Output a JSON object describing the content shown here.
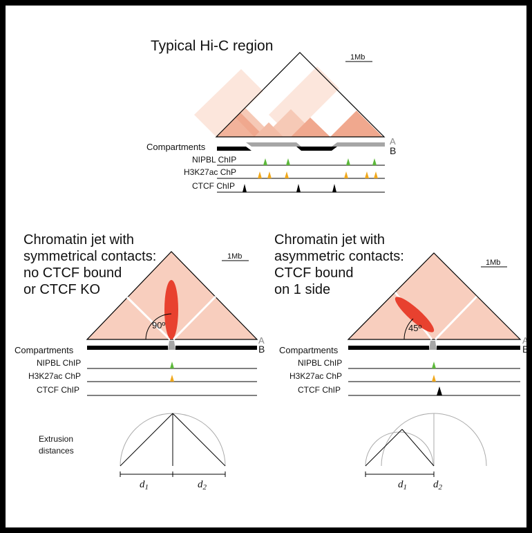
{
  "panel_top": {
    "title": "Typical Hi-C region",
    "scale_label": "1Mb",
    "tracks": {
      "compartments": "Compartments",
      "nipbl": "NIPBL ChIP",
      "h3k27ac": "H3K27ac ChP",
      "ctcf": "CTCF ChIP"
    },
    "compartment_a": "A",
    "compartment_b": "B"
  },
  "panel_left": {
    "title_lines": [
      "Chromatin jet with",
      "symmetrical contacts:",
      "no CTCF bound",
      "or CTCF KO"
    ],
    "scale_label": "1Mb",
    "angle_label": "90º",
    "tracks": {
      "compartments": "Compartments",
      "nipbl": "NIPBL ChIP",
      "h3k27ac": "H3K27ac ChP",
      "ctcf": "CTCF ChIP"
    },
    "compartment_a": "A",
    "compartment_b": "B",
    "extrusion_label_lines": [
      "Extrusion",
      "distances"
    ],
    "d1": "d1",
    "d2": "d2"
  },
  "panel_right": {
    "title_lines": [
      "Chromatin jet with",
      "asymmetric contacts:",
      "CTCF bound",
      "on 1 side"
    ],
    "scale_label": "1Mb",
    "angle_label": "45º",
    "tracks": {
      "compartments": "Compartments",
      "nipbl": "NIPBL ChIP",
      "h3k27ac": "H3K27ac ChP",
      "ctcf": "CTCF ChIP"
    },
    "compartment_a": "A",
    "compartment_b": "B",
    "d1": "d1",
    "d2": "d2"
  },
  "colors": {
    "hic_light": "#f7cfbf",
    "hic_mid": "#f0a98e",
    "hic_faint": "#fbe3d8",
    "jet_red": "#e8412f",
    "nipbl_green": "#5cb83a",
    "h3k27ac_orange": "#f0a81c",
    "ctcf_black": "#000000",
    "compartment_b": "#000000",
    "compartment_a": "#a6a6a6"
  }
}
